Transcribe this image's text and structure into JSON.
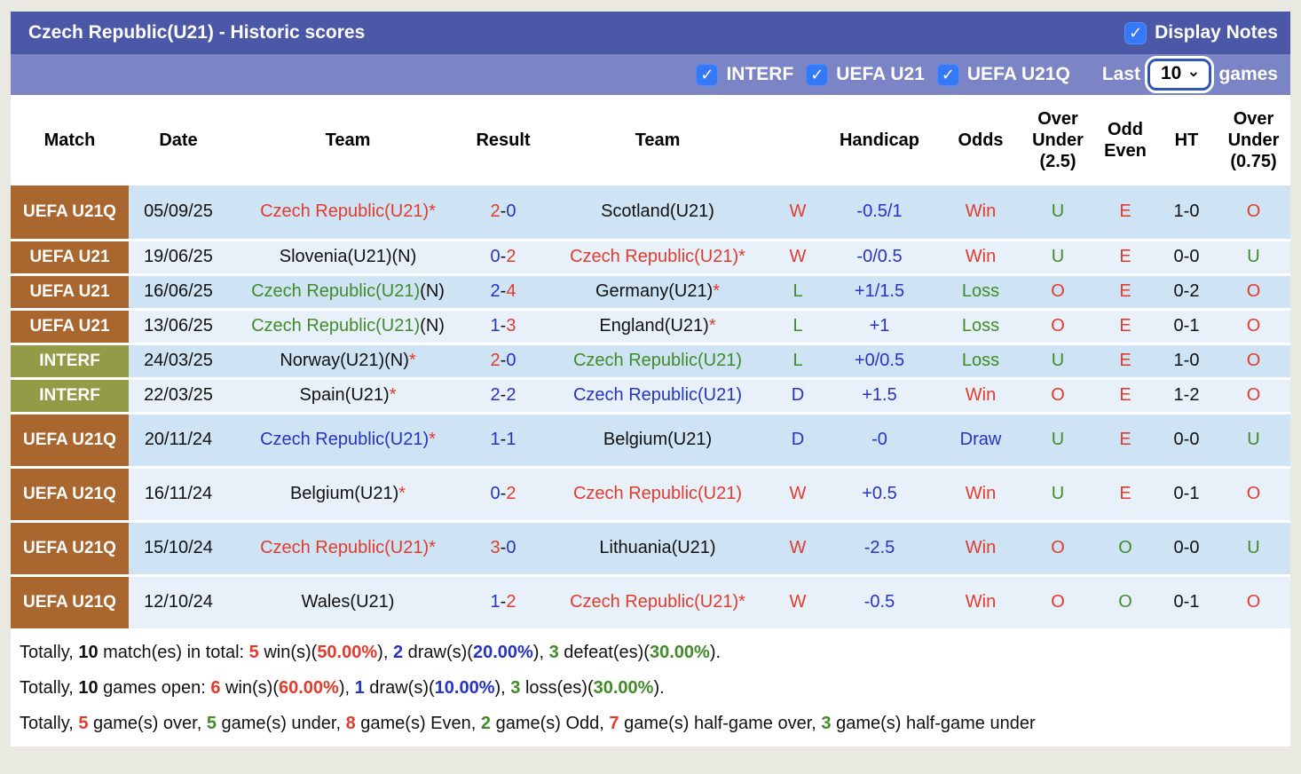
{
  "colors": {
    "red": "#e23b2c",
    "green": "#3f8c28",
    "blue": "#2634c4",
    "black": "#111111",
    "badge_brown": "#a9662f",
    "badge_olive": "#939b46",
    "bar1_bg": "#4b57a7",
    "bar2_bg": "#7b84c4",
    "row_dark": "#cee3f4",
    "row_light": "#e8f1fa",
    "checkbox_blue": "#3679f6"
  },
  "header": {
    "title": "Czech Republic(U21) - Historic scores",
    "display_notes": {
      "label": "Display Notes",
      "checked": true
    }
  },
  "filters_bar": {
    "filters": [
      {
        "label": "INTERF",
        "checked": true
      },
      {
        "label": "UEFA U21",
        "checked": true
      },
      {
        "label": "UEFA U21Q",
        "checked": true
      }
    ],
    "last_label": "Last",
    "last_games_value": "10",
    "games_label": "games"
  },
  "table": {
    "columns": [
      "Match",
      "Date",
      "Team",
      "Result",
      "Team",
      "",
      "Handicap",
      "Odds",
      "Over\nUnder\n(2.5)",
      "Odd\nEven",
      "HT",
      "Over\nUnder\n(0.75)"
    ],
    "rows": [
      {
        "league": "UEFA U21Q",
        "badge": "brown",
        "tall": true,
        "date": "05/09/25",
        "home": [
          [
            "Czech Republic(U21)*",
            "red"
          ]
        ],
        "score": [
          [
            "2",
            "red"
          ],
          [
            "0",
            "blue"
          ]
        ],
        "away": [
          [
            "Scotland(U21)",
            "black"
          ]
        ],
        "wdl": [
          "W",
          "red"
        ],
        "handicap": "-0.5/1",
        "odds": [
          "Win",
          "red"
        ],
        "ou25": [
          "U",
          "green"
        ],
        "oe": [
          "E",
          "red"
        ],
        "ht": "1-0",
        "ou075": [
          "O",
          "red"
        ]
      },
      {
        "league": "UEFA U21",
        "badge": "brown",
        "tall": false,
        "date": "19/06/25",
        "home": [
          [
            "Slovenia(U21)(N)",
            "black"
          ]
        ],
        "score": [
          [
            "0",
            "blue"
          ],
          [
            "2",
            "red"
          ]
        ],
        "away": [
          [
            "Czech Republic(U21)*",
            "red"
          ]
        ],
        "wdl": [
          "W",
          "red"
        ],
        "handicap": "-0/0.5",
        "odds": [
          "Win",
          "red"
        ],
        "ou25": [
          "U",
          "green"
        ],
        "oe": [
          "E",
          "red"
        ],
        "ht": "0-0",
        "ou075": [
          "U",
          "green"
        ]
      },
      {
        "league": "UEFA U21",
        "badge": "brown",
        "tall": false,
        "date": "16/06/25",
        "home": [
          [
            "Czech Republic(U21)",
            "green"
          ],
          [
            "(N)",
            "black"
          ]
        ],
        "score": [
          [
            "2",
            "blue"
          ],
          [
            "4",
            "red"
          ]
        ],
        "away": [
          [
            "Germany(U21)",
            "black"
          ],
          [
            "*",
            "red"
          ]
        ],
        "wdl": [
          "L",
          "green"
        ],
        "handicap": "+1/1.5",
        "odds": [
          "Loss",
          "green"
        ],
        "ou25": [
          "O",
          "red"
        ],
        "oe": [
          "E",
          "red"
        ],
        "ht": "0-2",
        "ou075": [
          "O",
          "red"
        ]
      },
      {
        "league": "UEFA U21",
        "badge": "brown",
        "tall": false,
        "date": "13/06/25",
        "home": [
          [
            "Czech Republic(U21)",
            "green"
          ],
          [
            "(N)",
            "black"
          ]
        ],
        "score": [
          [
            "1",
            "blue"
          ],
          [
            "3",
            "red"
          ]
        ],
        "away": [
          [
            "England(U21)",
            "black"
          ],
          [
            "*",
            "red"
          ]
        ],
        "wdl": [
          "L",
          "green"
        ],
        "handicap": "+1",
        "odds": [
          "Loss",
          "green"
        ],
        "ou25": [
          "O",
          "red"
        ],
        "oe": [
          "E",
          "red"
        ],
        "ht": "0-1",
        "ou075": [
          "O",
          "red"
        ]
      },
      {
        "league": "INTERF",
        "badge": "olive",
        "tall": false,
        "date": "24/03/25",
        "home": [
          [
            "Norway(U21)(N)",
            "black"
          ],
          [
            "*",
            "red"
          ]
        ],
        "score": [
          [
            "2",
            "red"
          ],
          [
            "0",
            "blue"
          ]
        ],
        "away": [
          [
            "Czech Republic(U21)",
            "green"
          ]
        ],
        "wdl": [
          "L",
          "green"
        ],
        "handicap": "+0/0.5",
        "odds": [
          "Loss",
          "green"
        ],
        "ou25": [
          "U",
          "green"
        ],
        "oe": [
          "E",
          "red"
        ],
        "ht": "1-0",
        "ou075": [
          "O",
          "red"
        ]
      },
      {
        "league": "INTERF",
        "badge": "olive",
        "tall": false,
        "date": "22/03/25",
        "home": [
          [
            "Spain(U21)",
            "black"
          ],
          [
            "*",
            "red"
          ]
        ],
        "score": [
          [
            "2",
            "blue"
          ],
          [
            "2",
            "blue"
          ]
        ],
        "away": [
          [
            "Czech Republic(U21)",
            "blue"
          ]
        ],
        "wdl": [
          "D",
          "blue"
        ],
        "handicap": "+1.5",
        "odds": [
          "Win",
          "red"
        ],
        "ou25": [
          "O",
          "red"
        ],
        "oe": [
          "E",
          "red"
        ],
        "ht": "1-2",
        "ou075": [
          "O",
          "red"
        ]
      },
      {
        "league": "UEFA U21Q",
        "badge": "brown",
        "tall": true,
        "date": "20/11/24",
        "home": [
          [
            "Czech Republic(U21)",
            "blue"
          ],
          [
            "*",
            "red"
          ]
        ],
        "score": [
          [
            "1",
            "blue"
          ],
          [
            "1",
            "blue"
          ]
        ],
        "away": [
          [
            "Belgium(U21)",
            "black"
          ]
        ],
        "wdl": [
          "D",
          "blue"
        ],
        "handicap": "-0",
        "odds": [
          "Draw",
          "blue"
        ],
        "ou25": [
          "U",
          "green"
        ],
        "oe": [
          "E",
          "red"
        ],
        "ht": "0-0",
        "ou075": [
          "U",
          "green"
        ]
      },
      {
        "league": "UEFA U21Q",
        "badge": "brown",
        "tall": true,
        "date": "16/11/24",
        "home": [
          [
            "Belgium(U21)",
            "black"
          ],
          [
            "*",
            "red"
          ]
        ],
        "score": [
          [
            "0",
            "blue"
          ],
          [
            "2",
            "red"
          ]
        ],
        "away": [
          [
            "Czech Republic(U21)",
            "red"
          ]
        ],
        "wdl": [
          "W",
          "red"
        ],
        "handicap": "+0.5",
        "odds": [
          "Win",
          "red"
        ],
        "ou25": [
          "U",
          "green"
        ],
        "oe": [
          "E",
          "red"
        ],
        "ht": "0-1",
        "ou075": [
          "O",
          "red"
        ]
      },
      {
        "league": "UEFA U21Q",
        "badge": "brown",
        "tall": true,
        "date": "15/10/24",
        "home": [
          [
            "Czech Republic(U21)*",
            "red"
          ]
        ],
        "score": [
          [
            "3",
            "red"
          ],
          [
            "0",
            "blue"
          ]
        ],
        "away": [
          [
            "Lithuania(U21)",
            "black"
          ]
        ],
        "wdl": [
          "W",
          "red"
        ],
        "handicap": "-2.5",
        "odds": [
          "Win",
          "red"
        ],
        "ou25": [
          "O",
          "red"
        ],
        "oe": [
          "O",
          "green"
        ],
        "ht": "0-0",
        "ou075": [
          "U",
          "green"
        ]
      },
      {
        "league": "UEFA U21Q",
        "badge": "brown",
        "tall": true,
        "date": "12/10/24",
        "home": [
          [
            "Wales(U21)",
            "black"
          ]
        ],
        "score": [
          [
            "1",
            "blue"
          ],
          [
            "2",
            "red"
          ]
        ],
        "away": [
          [
            "Czech Republic(U21)*",
            "red"
          ]
        ],
        "wdl": [
          "W",
          "red"
        ],
        "handicap": "-0.5",
        "odds": [
          "Win",
          "red"
        ],
        "ou25": [
          "O",
          "red"
        ],
        "oe": [
          "O",
          "green"
        ],
        "ht": "0-1",
        "ou075": [
          "O",
          "red"
        ]
      }
    ]
  },
  "footer": {
    "lines": [
      [
        {
          "t": "Totally, ",
          "c": "black"
        },
        {
          "t": "10",
          "c": "black",
          "b": true
        },
        {
          "t": " match(es) in total: ",
          "c": "black"
        },
        {
          "t": "5",
          "c": "red",
          "b": true
        },
        {
          "t": " win(s)(",
          "c": "black"
        },
        {
          "t": "50.00%",
          "c": "red",
          "b": true
        },
        {
          "t": "), ",
          "c": "black"
        },
        {
          "t": "2",
          "c": "blue",
          "b": true
        },
        {
          "t": " draw(s)(",
          "c": "black"
        },
        {
          "t": "20.00%",
          "c": "blue",
          "b": true
        },
        {
          "t": "), ",
          "c": "black"
        },
        {
          "t": "3",
          "c": "green",
          "b": true
        },
        {
          "t": " defeat(es)(",
          "c": "black"
        },
        {
          "t": "30.00%",
          "c": "green",
          "b": true
        },
        {
          "t": ").",
          "c": "black"
        }
      ],
      [
        {
          "t": "Totally, ",
          "c": "black"
        },
        {
          "t": "10",
          "c": "black",
          "b": true
        },
        {
          "t": " games open: ",
          "c": "black"
        },
        {
          "t": "6",
          "c": "red",
          "b": true
        },
        {
          "t": " win(s)(",
          "c": "black"
        },
        {
          "t": "60.00%",
          "c": "red",
          "b": true
        },
        {
          "t": "), ",
          "c": "black"
        },
        {
          "t": "1",
          "c": "blue",
          "b": true
        },
        {
          "t": " draw(s)(",
          "c": "black"
        },
        {
          "t": "10.00%",
          "c": "blue",
          "b": true
        },
        {
          "t": "), ",
          "c": "black"
        },
        {
          "t": "3",
          "c": "green",
          "b": true
        },
        {
          "t": " loss(es)(",
          "c": "black"
        },
        {
          "t": "30.00%",
          "c": "green",
          "b": true
        },
        {
          "t": ").",
          "c": "black"
        }
      ],
      [
        {
          "t": "Totally, ",
          "c": "black"
        },
        {
          "t": "5",
          "c": "red",
          "b": true
        },
        {
          "t": " game(s) over, ",
          "c": "black"
        },
        {
          "t": "5",
          "c": "green",
          "b": true
        },
        {
          "t": " game(s) under, ",
          "c": "black"
        },
        {
          "t": "8",
          "c": "red",
          "b": true
        },
        {
          "t": " game(s) Even, ",
          "c": "black"
        },
        {
          "t": "2",
          "c": "green",
          "b": true
        },
        {
          "t": " game(s) Odd, ",
          "c": "black"
        },
        {
          "t": "7",
          "c": "red",
          "b": true
        },
        {
          "t": " game(s) half-game over, ",
          "c": "black"
        },
        {
          "t": "3",
          "c": "green",
          "b": true
        },
        {
          "t": " game(s) half-game under",
          "c": "black"
        }
      ]
    ]
  }
}
